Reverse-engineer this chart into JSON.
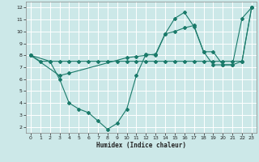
{
  "xlabel": "Humidex (Indice chaleur)",
  "background_color": "#cce8e8",
  "grid_color": "#ffffff",
  "line_color": "#1a7a6a",
  "xlim": [
    -0.5,
    23.5
  ],
  "ylim": [
    1.5,
    12.5
  ],
  "xticks": [
    0,
    1,
    2,
    3,
    4,
    5,
    6,
    7,
    8,
    9,
    10,
    11,
    12,
    13,
    14,
    15,
    16,
    17,
    18,
    19,
    20,
    21,
    22,
    23
  ],
  "yticks": [
    2,
    3,
    4,
    5,
    6,
    7,
    8,
    9,
    10,
    11,
    12
  ],
  "line1_x": [
    0,
    1,
    2,
    3,
    4,
    5,
    6,
    7,
    8,
    9,
    10,
    11,
    12,
    13,
    14,
    15,
    16,
    17,
    18,
    19,
    20,
    21,
    22,
    23
  ],
  "line1_y": [
    8.0,
    7.5,
    7.5,
    7.5,
    7.5,
    7.5,
    7.5,
    7.5,
    7.5,
    7.5,
    7.5,
    7.5,
    7.5,
    7.5,
    7.5,
    7.5,
    7.5,
    7.5,
    7.5,
    7.5,
    7.5,
    7.5,
    7.5,
    12.0
  ],
  "line2_x": [
    0,
    2,
    3,
    4,
    5,
    6,
    7,
    8,
    9,
    10,
    11,
    12,
    13,
    14,
    15,
    16,
    17,
    18,
    19,
    20,
    21,
    22,
    23
  ],
  "line2_y": [
    8.0,
    7.5,
    6.0,
    4.0,
    3.5,
    3.2,
    2.5,
    1.8,
    2.3,
    3.5,
    6.3,
    8.1,
    8.0,
    9.8,
    11.1,
    11.6,
    10.4,
    8.3,
    8.3,
    7.2,
    7.2,
    11.1,
    12.0
  ],
  "line3_x": [
    0,
    3,
    4,
    10,
    11,
    12,
    13,
    14,
    15,
    16,
    17,
    18,
    19,
    20,
    21,
    22,
    23
  ],
  "line3_y": [
    8.0,
    6.3,
    6.5,
    7.8,
    7.9,
    8.0,
    8.1,
    9.8,
    10.0,
    10.3,
    10.5,
    8.3,
    7.2,
    7.2,
    7.2,
    7.5,
    12.0
  ]
}
